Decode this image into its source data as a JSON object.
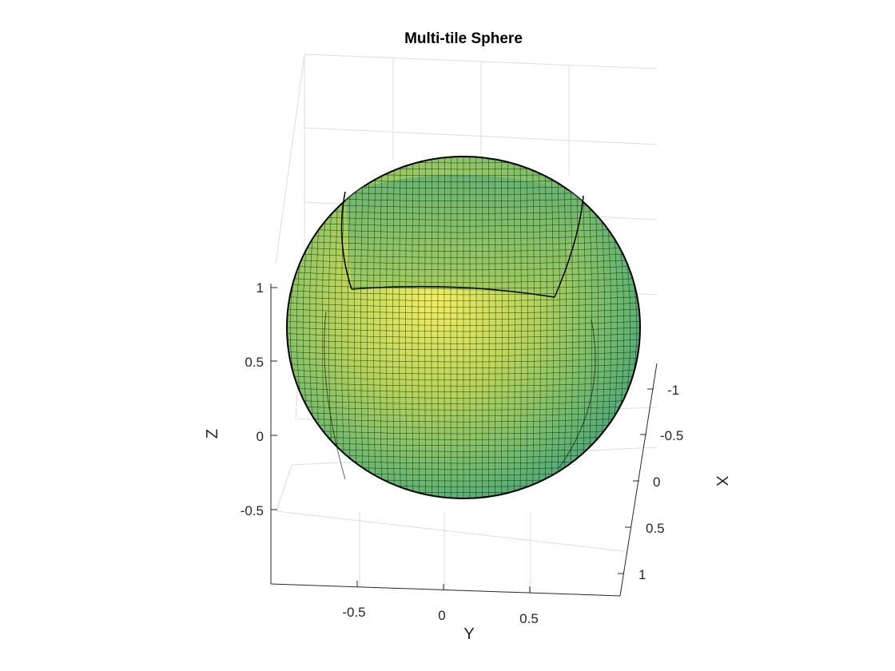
{
  "chart_data": {
    "type": "surface",
    "title": "Multi-tile Sphere",
    "xlabel": "X",
    "ylabel": "Y",
    "zlabel": "Z",
    "x_ticks": [
      "-1",
      "-0.5",
      "0",
      "0.5",
      "1"
    ],
    "y_ticks": [
      "-0.5",
      "0",
      "0.5"
    ],
    "z_ticks": [
      "-0.5",
      "0",
      "0.5",
      "1"
    ],
    "xlim": [
      -1,
      1
    ],
    "ylim": [
      -1,
      1
    ],
    "zlim": [
      -1,
      1
    ],
    "grid": true,
    "colormap": "parula",
    "surface": {
      "shape": "sphere",
      "radius": 1,
      "tiles": 6,
      "edge_color": "#000000",
      "face_colors": [
        "#f2ee60",
        "#b6d45a",
        "#6bb86f",
        "#3f9d7c"
      ]
    }
  }
}
